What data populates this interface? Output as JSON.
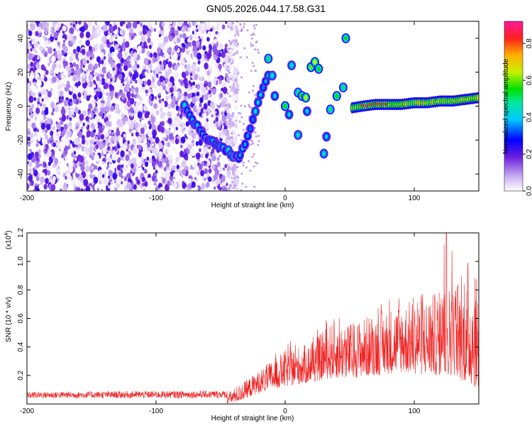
{
  "title": "GN05.2026.044.17.58.G31",
  "chart_data": [
    {
      "type": "heatmap",
      "title": "GN05.2026.044.17.58.G31",
      "xlabel": "Height of straight line (km)",
      "ylabel": "Frequency (Hz)",
      "xlim": [
        -200,
        150
      ],
      "ylim": [
        -50,
        50
      ],
      "xticks": [
        -200,
        -100,
        0,
        100
      ],
      "yticks": [
        -40,
        -20,
        0,
        20,
        40
      ],
      "colorbar": {
        "label": "Normalized spectral amplitude",
        "range": [
          0,
          0.92
        ],
        "ticks": [
          0,
          0.2,
          0.4,
          0.6,
          0.8
        ],
        "tick_labels": [
          "0.0",
          "0.2",
          "0.4",
          "0.6",
          "0.8"
        ]
      },
      "features": {
        "noise_region_x": [
          -200,
          -45
        ],
        "descending_track": {
          "x": [
            -78,
            -70,
            -62,
            -55,
            -48,
            -40,
            -36
          ],
          "y": [
            0,
            -10,
            -18,
            -22,
            -25,
            -29,
            -30
          ]
        },
        "rising_track": {
          "x": [
            -35,
            -30,
            -26,
            -22,
            -18,
            -15,
            -12
          ],
          "y": [
            -28,
            -20,
            -10,
            0,
            8,
            14,
            20
          ]
        },
        "blobs": [
          {
            "x": -13,
            "y": 28,
            "a": 0.55
          },
          {
            "x": -10,
            "y": 18,
            "a": 0.5
          },
          {
            "x": -8,
            "y": 6,
            "a": 0.45
          },
          {
            "x": 0,
            "y": 0,
            "a": 0.6
          },
          {
            "x": 3,
            "y": -5,
            "a": 0.45
          },
          {
            "x": 5,
            "y": 24,
            "a": 0.5
          },
          {
            "x": 10,
            "y": 8,
            "a": 0.55
          },
          {
            "x": 10,
            "y": -17,
            "a": 0.5
          },
          {
            "x": 13,
            "y": 6,
            "a": 0.6
          },
          {
            "x": 16,
            "y": 5,
            "a": 0.7
          },
          {
            "x": 17,
            "y": -3,
            "a": 0.45
          },
          {
            "x": 20,
            "y": 23,
            "a": 0.65
          },
          {
            "x": 23,
            "y": 26,
            "a": 0.7
          },
          {
            "x": 26,
            "y": 22,
            "a": 0.6
          },
          {
            "x": 30,
            "y": -28,
            "a": 0.5
          },
          {
            "x": 32,
            "y": -18,
            "a": 0.45
          },
          {
            "x": 35,
            "y": -2,
            "a": 0.55
          },
          {
            "x": 40,
            "y": 6,
            "a": 0.6
          },
          {
            "x": 45,
            "y": 11,
            "a": 0.55
          },
          {
            "x": 47,
            "y": 40,
            "a": 0.6
          }
        ],
        "horizontal_track": {
          "x": [
            52,
            60,
            70,
            80,
            90,
            100,
            110,
            120,
            130,
            140,
            150
          ],
          "y": [
            -1,
            0,
            1,
            1,
            1,
            2,
            2,
            3,
            3,
            4,
            5
          ],
          "peak": 0.9
        }
      }
    },
    {
      "type": "line",
      "xlabel": "Height of straight line (km)",
      "ylabel": "SNR (10 * v/v)",
      "exponent_label": "(x10",
      "exponent_power": "4",
      "exponent_close": ")",
      "xlim": [
        -200,
        150
      ],
      "ylim": [
        0,
        1.2
      ],
      "xticks": [
        -200,
        -100,
        0,
        100
      ],
      "yticks": [
        0.2,
        0.4,
        0.6,
        0.8,
        1.0,
        1.2
      ],
      "ytick_labels": [
        "0.2",
        "0.4",
        "0.6",
        "0.8",
        "1.0",
        "1.2"
      ],
      "color": "#ee2222",
      "envelope": {
        "x": [
          -200,
          -45,
          -35,
          -20,
          0,
          20,
          35,
          50,
          70,
          90,
          110,
          130,
          150
        ],
        "y": [
          0.07,
          0.08,
          0.15,
          0.25,
          0.4,
          0.45,
          0.6,
          0.6,
          0.68,
          0.75,
          0.8,
          0.9,
          0.95
        ],
        "floor": [
          0.0,
          0.0,
          0.02,
          0.08,
          0.12,
          0.15,
          0.18,
          0.18,
          0.2,
          0.22,
          0.2,
          0.2,
          0.1
        ],
        "peak_x": 125,
        "peak_y": 1.2
      }
    }
  ]
}
